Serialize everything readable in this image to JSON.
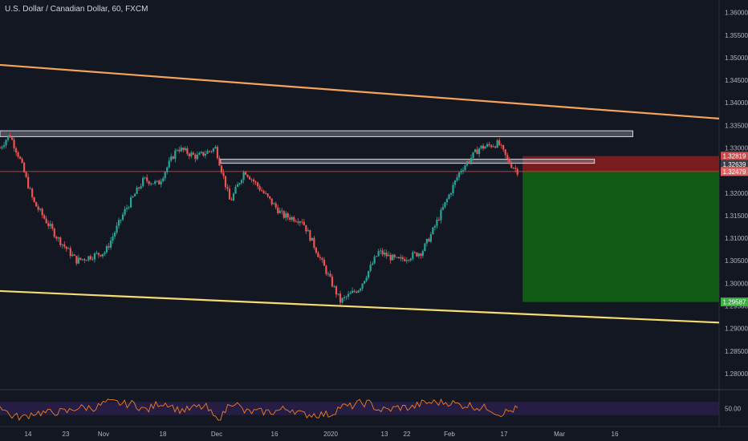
{
  "header": {
    "symbol_title": "U.S. Dollar / Canadian Dollar, 60, FXCM"
  },
  "colors": {
    "background": "#131722",
    "upper_trendline": "#f5a35a",
    "lower_trendline": "#f7dc6f",
    "candle_up": "#26a69a",
    "candle_down": "#ef5350",
    "stop_zone": "#8b1d1d",
    "target_zone": "#0f5f14",
    "rsi_line": "#f57c1f",
    "rsi_band": "#2b1f4d",
    "level_line": "#c43a3a"
  },
  "chart_data": {
    "type": "candlestick",
    "symbol": "USDCAD",
    "timeframe": "60",
    "x_ticks": [
      "14",
      "23",
      "Nov",
      "18",
      "Dec",
      "16",
      "2020",
      "13",
      "22",
      "Feb",
      "17",
      "Mar",
      "16"
    ],
    "y_ticks": [
      "1.36000",
      "1.35500",
      "1.35000",
      "1.34500",
      "1.34000",
      "1.33500",
      "1.33000",
      "1.32500",
      "1.32000",
      "1.31500",
      "1.31000",
      "1.30500",
      "1.30000",
      "1.29500",
      "1.29000",
      "1.28500",
      "1.28000"
    ],
    "ylim": [
      1.2775,
      1.361
    ],
    "price_path": [
      {
        "t": 0,
        "p": 1.33
      },
      {
        "t": 2,
        "p": 1.333
      },
      {
        "t": 4,
        "p": 1.328
      },
      {
        "t": 7,
        "p": 1.318
      },
      {
        "t": 12,
        "p": 1.31
      },
      {
        "t": 16,
        "p": 1.305
      },
      {
        "t": 22,
        "p": 1.307
      },
      {
        "t": 26,
        "p": 1.316
      },
      {
        "t": 30,
        "p": 1.323
      },
      {
        "t": 33,
        "p": 1.322
      },
      {
        "t": 37,
        "p": 1.33
      },
      {
        "t": 41,
        "p": 1.328
      },
      {
        "t": 45,
        "p": 1.33
      },
      {
        "t": 48,
        "p": 1.318
      },
      {
        "t": 51,
        "p": 1.325
      },
      {
        "t": 55,
        "p": 1.32
      },
      {
        "t": 59,
        "p": 1.315
      },
      {
        "t": 63,
        "p": 1.314
      },
      {
        "t": 67,
        "p": 1.305
      },
      {
        "t": 71,
        "p": 1.296
      },
      {
        "t": 75,
        "p": 1.299
      },
      {
        "t": 79,
        "p": 1.307
      },
      {
        "t": 83,
        "p": 1.305
      },
      {
        "t": 88,
        "p": 1.307
      },
      {
        "t": 90,
        "p": 1.311
      },
      {
        "t": 93,
        "p": 1.318
      },
      {
        "t": 96,
        "p": 1.325
      },
      {
        "t": 100,
        "p": 1.33
      },
      {
        "t": 104,
        "p": 1.331
      },
      {
        "t": 106,
        "p": 1.327
      },
      {
        "t": 108,
        "p": 1.3248
      }
    ],
    "price_labels": [
      {
        "text": "1.32819",
        "value": 1.32819,
        "kind": "stop"
      },
      {
        "text": "1.32639",
        "value": 1.32639,
        "kind": "neutral"
      },
      {
        "text": "1.32479",
        "value": 1.32479,
        "kind": "current"
      },
      {
        "text": "1.29587",
        "value": 1.29587,
        "kind": "target"
      }
    ],
    "horizontal_zones": [
      {
        "top": 1.3338,
        "bottom": 1.3325,
        "t_start": 0,
        "t_end": 132
      },
      {
        "top": 1.3275,
        "bottom": 1.3266,
        "t_start": 46,
        "t_end": 124
      }
    ],
    "trendlines": [
      {
        "name": "upper",
        "t1": 0,
        "p1": 1.3484,
        "t2": 150,
        "p2": 1.3365
      },
      {
        "name": "lower",
        "t1": 0,
        "p1": 1.2983,
        "t2": 150,
        "p2": 1.2913
      }
    ],
    "position": {
      "entry": 1.32479,
      "stop": 1.32819,
      "target": 1.29587,
      "t_start": 109,
      "t_end": 150
    },
    "rsi": {
      "reference_level": "50.00",
      "band": [
        30,
        70
      ]
    },
    "grid": false
  }
}
